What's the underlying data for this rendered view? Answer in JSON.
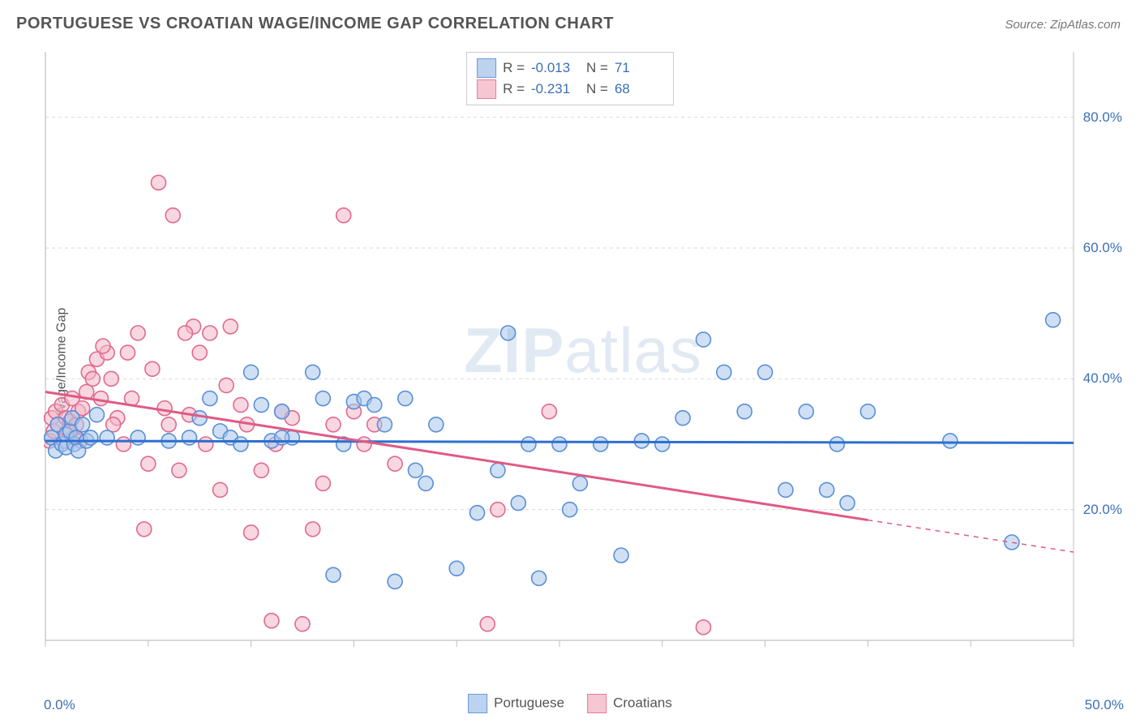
{
  "title": "PORTUGUESE VS CROATIAN WAGE/INCOME GAP CORRELATION CHART",
  "source": "Source: ZipAtlas.com",
  "ylabel": "Wage/Income Gap",
  "watermark": {
    "bold": "ZIP",
    "rest": "atlas"
  },
  "chart": {
    "type": "scatter",
    "xlim": [
      0,
      50
    ],
    "ylim": [
      0,
      90
    ],
    "x_ticks": [
      0,
      5,
      10,
      15,
      20,
      25,
      30,
      35,
      40,
      45,
      50
    ],
    "y_gridlines": [
      20,
      40,
      60,
      80
    ],
    "y_gridline_labels": [
      "20.0%",
      "40.0%",
      "60.0%",
      "80.0%"
    ],
    "x_min_label": "0.0%",
    "x_max_label": "50.0%",
    "background_color": "#ffffff",
    "grid_color": "#d9d9d9",
    "axis_color": "#bfbfbf",
    "marker_radius": 9,
    "marker_stroke_width": 1.6,
    "trend_line_width": 3,
    "series": [
      {
        "name": "Portuguese",
        "fill": "#a8c6ec",
        "stroke": "#5a8fd6",
        "fill_opacity": 0.55,
        "legend_fill": "#bcd3ef",
        "legend_stroke": "#6a9bd8",
        "R": "-0.013",
        "N": "71",
        "trend": {
          "x1": 0,
          "y1": 30.5,
          "x2": 50,
          "y2": 30.2,
          "color": "#2d6fd0",
          "dash_after_x": null
        },
        "points": [
          [
            0.3,
            31
          ],
          [
            0.5,
            29
          ],
          [
            0.6,
            33
          ],
          [
            0.8,
            30
          ],
          [
            1.0,
            31.5
          ],
          [
            1.0,
            29.5
          ],
          [
            1.2,
            32
          ],
          [
            1.3,
            34
          ],
          [
            1.4,
            30
          ],
          [
            1.5,
            31
          ],
          [
            1.6,
            29
          ],
          [
            1.8,
            33
          ],
          [
            2.0,
            30.5
          ],
          [
            2.2,
            31
          ],
          [
            2.5,
            34.5
          ],
          [
            3.0,
            31
          ],
          [
            4.5,
            31
          ],
          [
            6.0,
            30.5
          ],
          [
            7.0,
            31
          ],
          [
            7.5,
            34
          ],
          [
            8.0,
            37
          ],
          [
            8.5,
            32
          ],
          [
            9.0,
            31
          ],
          [
            9.5,
            30
          ],
          [
            10.0,
            41
          ],
          [
            10.5,
            36
          ],
          [
            11.0,
            30.5
          ],
          [
            11.5,
            35
          ],
          [
            12.0,
            31
          ],
          [
            13.0,
            41
          ],
          [
            13.5,
            37
          ],
          [
            14.0,
            10
          ],
          [
            14.5,
            30
          ],
          [
            15.0,
            36.5
          ],
          [
            15.5,
            37
          ],
          [
            16.0,
            36
          ],
          [
            16.5,
            33
          ],
          [
            17.0,
            9
          ],
          [
            17.5,
            37
          ],
          [
            18.0,
            26
          ],
          [
            18.5,
            24
          ],
          [
            19.0,
            33
          ],
          [
            20.0,
            11
          ],
          [
            21.0,
            19.5
          ],
          [
            22.0,
            26
          ],
          [
            22.5,
            47
          ],
          [
            23.0,
            21
          ],
          [
            23.5,
            30
          ],
          [
            24.0,
            9.5
          ],
          [
            25.0,
            30
          ],
          [
            25.5,
            20
          ],
          [
            26.0,
            24
          ],
          [
            27.0,
            30
          ],
          [
            28.0,
            13
          ],
          [
            29.0,
            30.5
          ],
          [
            30.0,
            30
          ],
          [
            31.0,
            34
          ],
          [
            32.0,
            46
          ],
          [
            33.0,
            41
          ],
          [
            34.0,
            35
          ],
          [
            35.0,
            41
          ],
          [
            36.0,
            23
          ],
          [
            37.0,
            35
          ],
          [
            38.0,
            23
          ],
          [
            38.5,
            30
          ],
          [
            39.0,
            21
          ],
          [
            40.0,
            35
          ],
          [
            44.0,
            30.5
          ],
          [
            47.0,
            15
          ],
          [
            49.0,
            49
          ],
          [
            11.5,
            31
          ]
        ]
      },
      {
        "name": "Croatians",
        "fill": "#f4b6c6",
        "stroke": "#e06a8e",
        "fill_opacity": 0.55,
        "legend_fill": "#f7c6d3",
        "legend_stroke": "#e879a0",
        "R": "-0.231",
        "N": "68",
        "trend": {
          "x1": 0,
          "y1": 38,
          "x2": 50,
          "y2": 13.5,
          "color": "#e05a84",
          "dash_after_x": 40
        },
        "points": [
          [
            0.2,
            30.5
          ],
          [
            0.3,
            34
          ],
          [
            0.4,
            32
          ],
          [
            0.5,
            35
          ],
          [
            0.6,
            33
          ],
          [
            0.8,
            36
          ],
          [
            0.9,
            30.5
          ],
          [
            1.0,
            34
          ],
          [
            1.1,
            32
          ],
          [
            1.2,
            33.5
          ],
          [
            1.3,
            37
          ],
          [
            1.4,
            31
          ],
          [
            1.5,
            33
          ],
          [
            1.6,
            35
          ],
          [
            1.8,
            35.5
          ],
          [
            2.0,
            38
          ],
          [
            2.1,
            41
          ],
          [
            2.3,
            40
          ],
          [
            2.5,
            43
          ],
          [
            2.7,
            37
          ],
          [
            3.0,
            44
          ],
          [
            3.2,
            40
          ],
          [
            3.5,
            34
          ],
          [
            3.8,
            30
          ],
          [
            4.0,
            44
          ],
          [
            4.2,
            37
          ],
          [
            4.5,
            47
          ],
          [
            4.8,
            17
          ],
          [
            5.0,
            27
          ],
          [
            5.2,
            41.5
          ],
          [
            5.5,
            70
          ],
          [
            5.8,
            35.5
          ],
          [
            6.0,
            33
          ],
          [
            6.2,
            65
          ],
          [
            6.5,
            26
          ],
          [
            7.0,
            34.5
          ],
          [
            7.2,
            48
          ],
          [
            7.5,
            44
          ],
          [
            7.8,
            30
          ],
          [
            8.0,
            47
          ],
          [
            8.5,
            23
          ],
          [
            8.8,
            39
          ],
          [
            9.0,
            48
          ],
          [
            9.5,
            36
          ],
          [
            9.8,
            33
          ],
          [
            10.0,
            16.5
          ],
          [
            10.5,
            26
          ],
          [
            11.0,
            3
          ],
          [
            11.2,
            30
          ],
          [
            11.5,
            35
          ],
          [
            12.0,
            34
          ],
          [
            12.5,
            2.5
          ],
          [
            13.0,
            17
          ],
          [
            13.5,
            24
          ],
          [
            14.0,
            33
          ],
          [
            14.5,
            65
          ],
          [
            15.0,
            35
          ],
          [
            15.5,
            30
          ],
          [
            16.0,
            33
          ],
          [
            17.0,
            27
          ],
          [
            21.5,
            2.5
          ],
          [
            22.0,
            20
          ],
          [
            24.5,
            35
          ],
          [
            32.0,
            2
          ],
          [
            1.7,
            30.5
          ],
          [
            2.8,
            45
          ],
          [
            3.3,
            33
          ],
          [
            6.8,
            47
          ]
        ]
      }
    ]
  },
  "legend_top": {
    "rows": [
      {
        "swatch_series": 0,
        "r_label": "R =",
        "n_label": "N ="
      },
      {
        "swatch_series": 1,
        "r_label": "R =",
        "n_label": "N ="
      }
    ]
  },
  "legend_bottom": [
    {
      "series": 0
    },
    {
      "series": 1
    }
  ],
  "stat_value_color": "#3b6fb6"
}
